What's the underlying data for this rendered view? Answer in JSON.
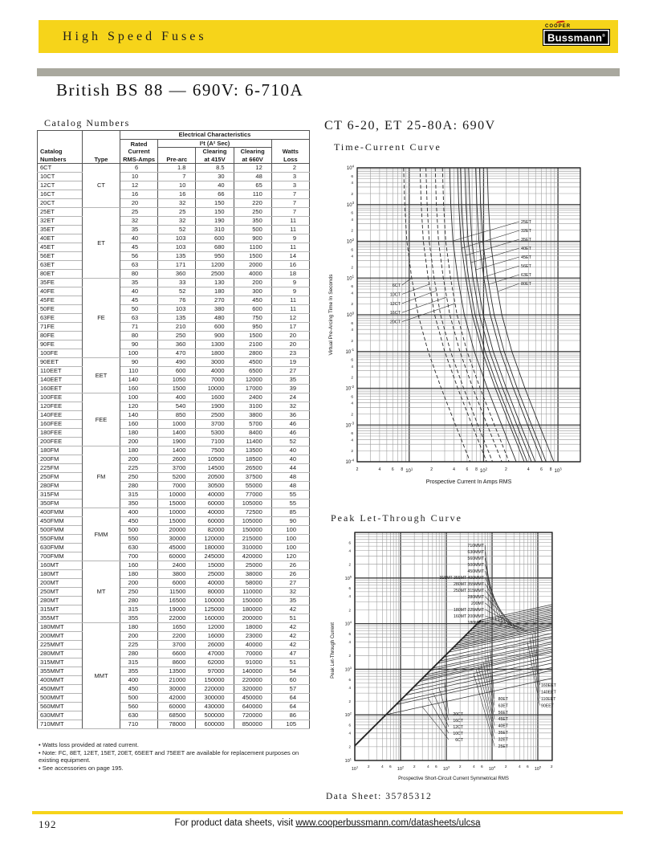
{
  "header": {
    "banner_title": "High Speed Fuses",
    "brand_top": "COOPER",
    "brand_name": "Bussmann",
    "page_title": "British BS 88 — 690V: 6-710A"
  },
  "catalog": {
    "section_title": "Catalog Numbers",
    "headers": {
      "catalog": "Catalog\nNumbers",
      "type": "Type",
      "elec": "Electrical Characteristics",
      "rated": "Rated\nCurrent\nRMS-Amps",
      "i2t": "I²t (A² Sec)",
      "pre_arc": "Pre-arc",
      "clear415": "Clearing\nat 415V",
      "clear660": "Clearing\nat 660V",
      "watts": "Watts\nLoss"
    },
    "groups": [
      {
        "type": "CT",
        "rows": [
          [
            "6CT",
            "6",
            "1.8",
            "8.5",
            "12",
            "2"
          ],
          [
            "10CT",
            "10",
            "7",
            "30",
            "48",
            "3"
          ],
          [
            "12CT",
            "12",
            "10",
            "40",
            "65",
            "3"
          ],
          [
            "16CT",
            "16",
            "16",
            "66",
            "110",
            "7"
          ],
          [
            "20CT",
            "20",
            "32",
            "150",
            "220",
            "7"
          ]
        ]
      },
      {
        "type": "ET",
        "rows": [
          [
            "25ET",
            "25",
            "25",
            "150",
            "250",
            "7"
          ],
          [
            "32ET",
            "32",
            "32",
            "190",
            "350",
            "11"
          ],
          [
            "35ET",
            "35",
            "52",
            "310",
            "500",
            "11"
          ],
          [
            "40ET",
            "40",
            "103",
            "600",
            "900",
            "9"
          ],
          [
            "45ET",
            "45",
            "103",
            "680",
            "1100",
            "11"
          ],
          [
            "56ET",
            "56",
            "135",
            "950",
            "1500",
            "14"
          ],
          [
            "63ET",
            "63",
            "171",
            "1200",
            "2000",
            "16"
          ],
          [
            "80ET",
            "80",
            "360",
            "2500",
            "4000",
            "18"
          ]
        ]
      },
      {
        "type": "FE",
        "rows": [
          [
            "35FE",
            "35",
            "33",
            "130",
            "200",
            "9"
          ],
          [
            "40FE",
            "40",
            "52",
            "180",
            "300",
            "9"
          ],
          [
            "45FE",
            "45",
            "76",
            "270",
            "450",
            "11"
          ],
          [
            "50FE",
            "50",
            "103",
            "380",
            "600",
            "11"
          ],
          [
            "63FE",
            "63",
            "135",
            "480",
            "750",
            "12"
          ],
          [
            "71FE",
            "71",
            "210",
            "600",
            "950",
            "17"
          ],
          [
            "80FE",
            "80",
            "250",
            "900",
            "1500",
            "20"
          ],
          [
            "90FE",
            "90",
            "360",
            "1300",
            "2100",
            "20"
          ],
          [
            "100FE",
            "100",
            "470",
            "1800",
            "2800",
            "23"
          ]
        ]
      },
      {
        "type": "EET",
        "rows": [
          [
            "90EET",
            "90",
            "490",
            "3000",
            "4500",
            "19"
          ],
          [
            "110EET",
            "110",
            "600",
            "4000",
            "6500",
            "27"
          ],
          [
            "140EET",
            "140",
            "1050",
            "7000",
            "12000",
            "35"
          ],
          [
            "160EET",
            "160",
            "1500",
            "10000",
            "17000",
            "39"
          ]
        ]
      },
      {
        "type": "FEE",
        "rows": [
          [
            "100FEE",
            "100",
            "400",
            "1600",
            "2400",
            "24"
          ],
          [
            "120FEE",
            "120",
            "540",
            "1900",
            "3100",
            "32"
          ],
          [
            "140FEE",
            "140",
            "850",
            "2500",
            "3800",
            "36"
          ],
          [
            "160FEE",
            "160",
            "1000",
            "3700",
            "5700",
            "46"
          ],
          [
            "180FEE",
            "180",
            "1400",
            "5300",
            "8400",
            "46"
          ],
          [
            "200FEE",
            "200",
            "1900",
            "7100",
            "11400",
            "52"
          ]
        ]
      },
      {
        "type": "FM",
        "rows": [
          [
            "180FM",
            "180",
            "1400",
            "7500",
            "13500",
            "40"
          ],
          [
            "200FM",
            "200",
            "2600",
            "10500",
            "18500",
            "40"
          ],
          [
            "225FM",
            "225",
            "3700",
            "14500",
            "26500",
            "44"
          ],
          [
            "250FM",
            "250",
            "5200",
            "20500",
            "37500",
            "48"
          ],
          [
            "280FM",
            "280",
            "7000",
            "30500",
            "55000",
            "48"
          ],
          [
            "315FM",
            "315",
            "10000",
            "40000",
            "77000",
            "55"
          ],
          [
            "350FM",
            "350",
            "15000",
            "60000",
            "105000",
            "55"
          ]
        ]
      },
      {
        "type": "FMM",
        "rows": [
          [
            "400FMM",
            "400",
            "10000",
            "40000",
            "72500",
            "85"
          ],
          [
            "450FMM",
            "450",
            "15000",
            "60000",
            "105000",
            "90"
          ],
          [
            "500FMM",
            "500",
            "20000",
            "82000",
            "150000",
            "100"
          ],
          [
            "550FMM",
            "550",
            "30000",
            "120000",
            "215000",
            "100"
          ],
          [
            "630FMM",
            "630",
            "45000",
            "180000",
            "310000",
            "100"
          ],
          [
            "700FMM",
            "700",
            "60000",
            "245000",
            "420000",
            "120"
          ]
        ]
      },
      {
        "type": "MT",
        "rows": [
          [
            "160MT",
            "160",
            "2400",
            "15000",
            "25000",
            "26"
          ],
          [
            "180MT",
            "180",
            "3800",
            "25000",
            "38000",
            "26"
          ],
          [
            "200MT",
            "200",
            "6000",
            "40000",
            "58000",
            "27"
          ],
          [
            "250MT",
            "250",
            "11500",
            "80000",
            "110000",
            "32"
          ],
          [
            "280MT",
            "280",
            "16500",
            "100000",
            "150000",
            "35"
          ],
          [
            "315MT",
            "315",
            "19000",
            "125000",
            "180000",
            "42"
          ],
          [
            "355MT",
            "355",
            "22000",
            "160000",
            "200000",
            "51"
          ]
        ]
      },
      {
        "type": "MMT",
        "rows": [
          [
            "180MMT",
            "180",
            "1650",
            "12000",
            "18000",
            "42"
          ],
          [
            "200MMT",
            "200",
            "2200",
            "16000",
            "23000",
            "42"
          ],
          [
            "225MMT",
            "225",
            "3700",
            "26000",
            "40000",
            "42"
          ],
          [
            "280MMT",
            "280",
            "6600",
            "47000",
            "70000",
            "47"
          ],
          [
            "315MMT",
            "315",
            "8600",
            "62000",
            "91000",
            "51"
          ],
          [
            "355MMT",
            "355",
            "13500",
            "97000",
            "140000",
            "54"
          ],
          [
            "400MMT",
            "400",
            "21000",
            "150000",
            "220000",
            "60"
          ],
          [
            "450MMT",
            "450",
            "30000",
            "220000",
            "320000",
            "57"
          ],
          [
            "500MMT",
            "500",
            "42000",
            "300000",
            "450000",
            "64"
          ],
          [
            "560MMT",
            "560",
            "60000",
            "430000",
            "640000",
            "64"
          ],
          [
            "630MMT",
            "630",
            "68500",
            "500000",
            "720000",
            "86"
          ],
          [
            "710MMT",
            "710",
            "78000",
            "600000",
            "850000",
            "105"
          ]
        ]
      }
    ],
    "footnotes": [
      "• Watts loss provided at rated current.",
      "• Note: FC, 8ET, 12ET, 15ET, 20ET, 65EET and 75EET are available for replacement purposes on existing equipment.",
      "• See accessories on page 195."
    ]
  },
  "right": {
    "section_title": "CT 6-20, ET 25-80A: 690V",
    "tc_title": "Time-Current Curve",
    "plt_title": "Peak Let-Through Curve",
    "datasheet": "Data Sheet: 35785312"
  },
  "footer": {
    "page_number": "192",
    "text": "For product data sheets, visit ",
    "link": "www.cooperbussmann.com/datasheets/ulcsa"
  },
  "chart_data": [
    {
      "type": "line",
      "title": "Time-Current Curve",
      "xlabel": "Prospective Current In Amps RMS",
      "ylabel": "Virtual Pre-Arcing Time In Seconds",
      "scale": "log-log",
      "grid": true,
      "xlim": [
        2,
        2000
      ],
      "ylim": [
        0.0001,
        10000.0
      ],
      "time_grid": [
        10000.0,
        1000.0,
        100.0,
        10,
        1,
        0.1,
        0.01,
        0.001,
        0.0001
      ],
      "current_multipliers": [
        1.4,
        1.45,
        1.55,
        1.8,
        2.2,
        3.0,
        4.5,
        7.0,
        11.0
      ],
      "series_families": [
        {
          "family": "CT",
          "style": "dashed",
          "ratings": [
            6,
            10,
            12,
            16,
            20
          ]
        },
        {
          "family": "ET",
          "style": "solid",
          "ratings": [
            25,
            32,
            35,
            40,
            45,
            56,
            63,
            80
          ]
        }
      ],
      "labels": {
        "et": [
          {
            "text": "25ET",
            "rating": 25
          },
          {
            "text": "32ET",
            "rating": 32
          },
          {
            "text": "35ET",
            "rating": 35
          },
          {
            "text": "40ET",
            "rating": 40
          },
          {
            "text": "45ET",
            "rating": 45
          },
          {
            "text": "56ET",
            "rating": 56
          },
          {
            "text": "63ET",
            "rating": 63
          },
          {
            "text": "80ET",
            "rating": 80
          }
        ],
        "ct": [
          {
            "text": "6CT",
            "rating": 6
          },
          {
            "text": "10CT",
            "rating": 10
          },
          {
            "text": "12CT",
            "rating": 12
          },
          {
            "text": "16CT",
            "rating": 16
          },
          {
            "text": "20CT",
            "rating": 20
          }
        ]
      }
    },
    {
      "type": "line",
      "title": "Peak Let-Through Curve",
      "xlabel": "Prospective Short-Circuit Current Symmetrical RMS",
      "ylabel": "Peak Let-Through Current",
      "scale": "log-log",
      "grid": true,
      "xlim": [
        10,
        207000
      ],
      "ylim": [
        10,
        1000000.0
      ],
      "diagonal": {
        "peak_factor": 2.1,
        "from": 10,
        "to": 5680
      },
      "model": {
        "branch_multiple": 8,
        "loglog_slope": 0.22
      },
      "series_families": [
        {
          "family": "CT",
          "ratings": [
            6,
            10,
            12,
            16,
            20
          ]
        },
        {
          "family": "ET",
          "ratings": [
            25,
            32,
            35,
            40,
            45,
            56,
            63,
            80
          ]
        },
        {
          "family": "EET",
          "ratings": [
            90,
            110,
            140,
            160
          ]
        },
        {
          "family": "MT",
          "ratings": [
            160,
            180,
            200,
            250,
            280,
            315,
            355
          ]
        },
        {
          "family": "MMT",
          "ratings": [
            180,
            200,
            225,
            280,
            315,
            355,
            400,
            450,
            500,
            560,
            630,
            710
          ]
        }
      ],
      "labels": {
        "mt_mmt": [
          {
            "text": "710MMT",
            "rating": 710
          },
          {
            "text": "630MMT",
            "rating": 630
          },
          {
            "text": "560MMT",
            "rating": 560
          },
          {
            "text": "500MMT",
            "rating": 500
          },
          {
            "text": "450MMT",
            "rating": 450
          },
          {
            "text": "315MT 355MT 400MMT",
            "rating": 400
          },
          {
            "text": "280MT 355MMT",
            "rating": 355
          },
          {
            "text": "250MT 315MMT",
            "rating": 315
          },
          {
            "text": "280MMT",
            "rating": 280
          },
          {
            "text": "200MT",
            "rating": 200
          },
          {
            "text": "180MT 225MMT",
            "rating": 225
          },
          {
            "text": "160MT 200MMT",
            "rating": 200
          },
          {
            "text": "180MMT",
            "rating": 180
          }
        ],
        "ct": [
          {
            "text": "20CT",
            "rating": 20
          },
          {
            "text": "16CT",
            "rating": 16
          },
          {
            "text": "12CT",
            "rating": 12
          },
          {
            "text": "10CT",
            "rating": 10
          },
          {
            "text": "6CT",
            "rating": 6
          }
        ],
        "et": [
          {
            "text": "80ET",
            "rating": 80
          },
          {
            "text": "63ET",
            "rating": 63
          },
          {
            "text": "56ET",
            "rating": 56
          },
          {
            "text": "45ET",
            "rating": 45
          },
          {
            "text": "40ET",
            "rating": 40
          },
          {
            "text": "35ET",
            "rating": 35
          },
          {
            "text": "32ET",
            "rating": 32
          },
          {
            "text": "25ET",
            "rating": 25
          }
        ],
        "eet": [
          {
            "text": "160EET",
            "rating": 160
          },
          {
            "text": "140EET",
            "rating": 140
          },
          {
            "text": "110EET",
            "rating": 110
          },
          {
            "text": "90EET",
            "rating": 90
          }
        ]
      }
    }
  ]
}
